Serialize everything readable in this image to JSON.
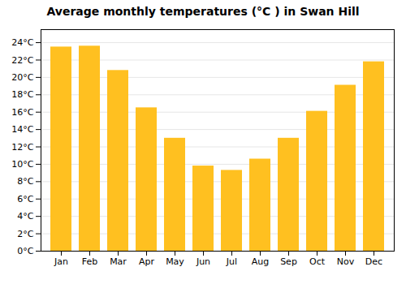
{
  "chart_data": {
    "type": "bar",
    "title": "Average monthly temperatures (°C ) in Swan Hill",
    "categories": [
      "Jan",
      "Feb",
      "Mar",
      "Apr",
      "May",
      "Jun",
      "Jul",
      "Aug",
      "Sep",
      "Oct",
      "Nov",
      "Dec"
    ],
    "values": [
      23.5,
      23.6,
      20.8,
      16.5,
      13.0,
      9.8,
      9.3,
      10.6,
      13.0,
      16.1,
      19.1,
      21.8
    ],
    "color": "#FFC020",
    "ylim": [
      0,
      25.5
    ],
    "yticks": [
      {
        "value": 0,
        "label": "0°C"
      },
      {
        "value": 2,
        "label": "2°C"
      },
      {
        "value": 4,
        "label": "4°C"
      },
      {
        "value": 6,
        "label": "6°C"
      },
      {
        "value": 8,
        "label": "8°C"
      },
      {
        "value": 10,
        "label": "10°C"
      },
      {
        "value": 12,
        "label": "12°C"
      },
      {
        "value": 14,
        "label": "14°C"
      },
      {
        "value": 16,
        "label": "16°C"
      },
      {
        "value": 18,
        "label": "18°C"
      },
      {
        "value": 20,
        "label": "20°C"
      },
      {
        "value": 22,
        "label": "22°C"
      },
      {
        "value": 24,
        "label": "24°C"
      }
    ],
    "grid": true
  }
}
